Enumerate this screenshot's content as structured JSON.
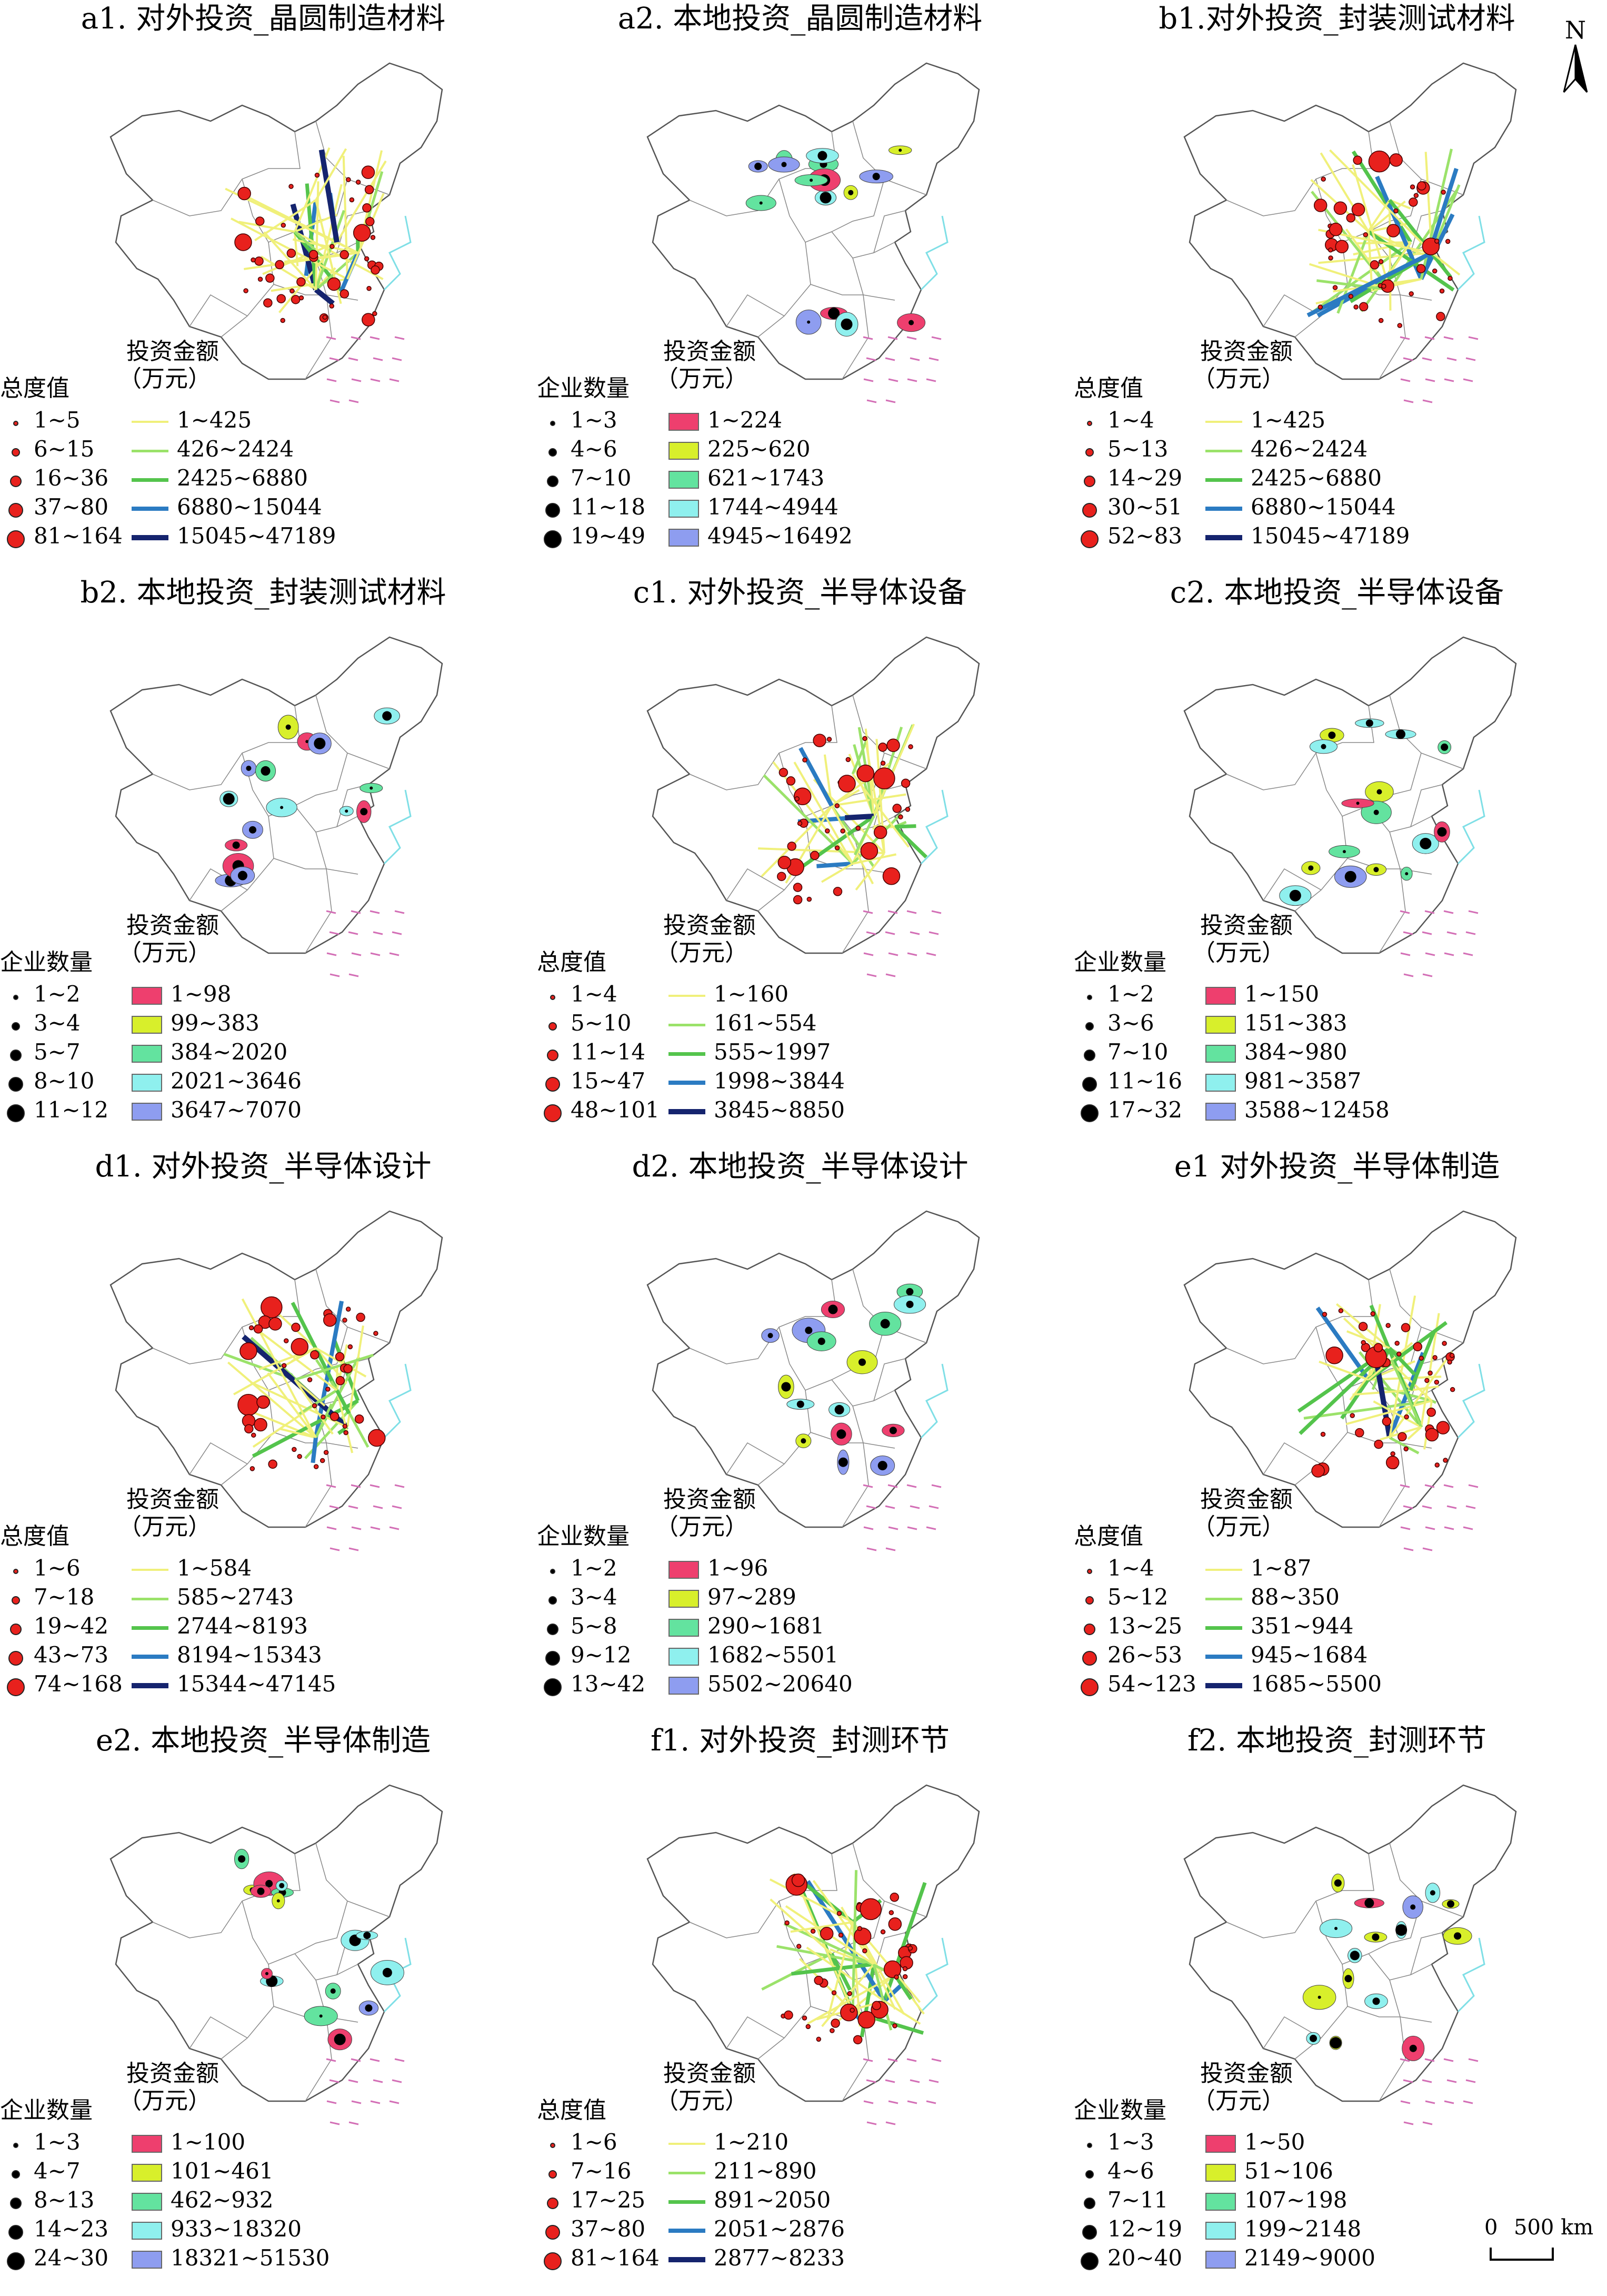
{
  "colors": {
    "outflow_dot": "#e8211d",
    "local_dot": "#000000",
    "flow_lines": [
      "#f0f07a",
      "#9be26a",
      "#54c44c",
      "#2b7bc2",
      "#15246e"
    ],
    "local_fills": [
      "#ee3f6e",
      "#d8ef2b",
      "#63e39f",
      "#8ff0ee",
      "#8e9df0"
    ],
    "map_stroke": "#555555",
    "island_stroke": "#d36fb6",
    "coast_stroke": "#7fdfe6"
  },
  "north_arrow": {
    "label": "N"
  },
  "scale_bar": {
    "zero": "0",
    "label": "500 km"
  },
  "panels": [
    {
      "id": "a1",
      "kind": "outflow",
      "title": "a1. 对外投资_晶圆制造材料",
      "legend_size_title": "总度值",
      "legend_amount_title": "投资金额",
      "legend_amount_unit": "（万元）",
      "size_classes": [
        "1~5",
        "6~15",
        "16~36",
        "37~80",
        "81~164"
      ],
      "amount_classes": [
        "1~425",
        "426~2424",
        "2425~6880",
        "6880~15044",
        "15045~47189"
      ]
    },
    {
      "id": "a2",
      "kind": "local",
      "title": "a2. 本地投资_晶圆制造材料",
      "legend_size_title": "企业数量",
      "legend_amount_title": "投资金额",
      "legend_amount_unit": "（万元）",
      "size_classes": [
        "1~3",
        "4~6",
        "7~10",
        "11~18",
        "19~49"
      ],
      "amount_classes": [
        "1~224",
        "225~620",
        "621~1743",
        "1744~4944",
        "4945~16492"
      ]
    },
    {
      "id": "b1",
      "kind": "outflow",
      "title": "b1.对外投资_封装测试材料",
      "legend_size_title": "总度值",
      "legend_amount_title": "投资金额",
      "legend_amount_unit": "（万元）",
      "size_classes": [
        "1~4",
        "5~13",
        "14~29",
        "30~51",
        "52~83"
      ],
      "amount_classes": [
        "1~425",
        "426~2424",
        "2425~6880",
        "6880~15044",
        "15045~47189"
      ]
    },
    {
      "id": "b2",
      "kind": "local",
      "title": "b2. 本地投资_封装测试材料",
      "legend_size_title": "企业数量",
      "legend_amount_title": "投资金额",
      "legend_amount_unit": "（万元）",
      "size_classes": [
        "1~2",
        "3~4",
        "5~7",
        "8~10",
        "11~12"
      ],
      "amount_classes": [
        "1~98",
        "99~383",
        "384~2020",
        "2021~3646",
        "3647~7070"
      ]
    },
    {
      "id": "c1",
      "kind": "outflow",
      "title": "c1. 对外投资_半导体设备",
      "legend_size_title": "总度值",
      "legend_amount_title": "投资金额",
      "legend_amount_unit": "（万元）",
      "size_classes": [
        "1~4",
        "5~10",
        "11~14",
        "15~47",
        "48~101"
      ],
      "amount_classes": [
        "1~160",
        "161~554",
        "555~1997",
        "1998~3844",
        "3845~8850"
      ]
    },
    {
      "id": "c2",
      "kind": "local",
      "title": "c2. 本地投资_半导体设备",
      "legend_size_title": "企业数量",
      "legend_amount_title": "投资金额",
      "legend_amount_unit": "（万元）",
      "size_classes": [
        "1~2",
        "3~6",
        "7~10",
        "11~16",
        "17~32"
      ],
      "amount_classes": [
        "1~150",
        "151~383",
        "384~980",
        "981~3587",
        "3588~12458"
      ]
    },
    {
      "id": "d1",
      "kind": "outflow",
      "title": "d1. 对外投资_半导体设计",
      "legend_size_title": "总度值",
      "legend_amount_title": "投资金额",
      "legend_amount_unit": "（万元）",
      "size_classes": [
        "1~6",
        "7~18",
        "19~42",
        "43~73",
        "74~168"
      ],
      "amount_classes": [
        "1~584",
        "585~2743",
        "2744~8193",
        "8194~15343",
        "15344~47145"
      ]
    },
    {
      "id": "d2",
      "kind": "local",
      "title": "d2. 本地投资_半导体设计",
      "legend_size_title": "企业数量",
      "legend_amount_title": "投资金额",
      "legend_amount_unit": "（万元）",
      "size_classes": [
        "1~2",
        "3~4",
        "5~8",
        "9~12",
        "13~42"
      ],
      "amount_classes": [
        "1~96",
        "97~289",
        "290~1681",
        "1682~5501",
        "5502~20640"
      ]
    },
    {
      "id": "e1",
      "kind": "outflow",
      "title": "e1 对外投资_半导体制造",
      "legend_size_title": "总度值",
      "legend_amount_title": "投资金额",
      "legend_amount_unit": "（万元）",
      "size_classes": [
        "1~4",
        "5~12",
        "13~25",
        "26~53",
        "54~123"
      ],
      "amount_classes": [
        "1~87",
        "88~350",
        "351~944",
        "945~1684",
        "1685~5500"
      ]
    },
    {
      "id": "e2",
      "kind": "local",
      "title": "e2. 本地投资_半导体制造",
      "legend_size_title": "企业数量",
      "legend_amount_title": "投资金额",
      "legend_amount_unit": "（万元）",
      "size_classes": [
        "1~3",
        "4~7",
        "8~13",
        "14~23",
        "24~30"
      ],
      "amount_classes": [
        "1~100",
        "101~461",
        "462~932",
        "933~18320",
        "18321~51530"
      ]
    },
    {
      "id": "f1",
      "kind": "outflow",
      "title": "f1. 对外投资_封测环节",
      "legend_size_title": "总度值",
      "legend_amount_title": "投资金额",
      "legend_amount_unit": "（万元）",
      "size_classes": [
        "1~6",
        "7~16",
        "17~25",
        "37~80",
        "81~164"
      ],
      "amount_classes": [
        "1~210",
        "211~890",
        "891~2050",
        "2051~2876",
        "2877~8233"
      ]
    },
    {
      "id": "f2",
      "kind": "local",
      "title": "f2. 本地投资_封测环节",
      "legend_size_title": "企业数量",
      "legend_amount_title": "投资金额",
      "legend_amount_unit": "（万元）",
      "size_classes": [
        "1~3",
        "4~6",
        "7~11",
        "12~19",
        "20~40"
      ],
      "amount_classes": [
        "1~50",
        "51~106",
        "107~198",
        "199~2148",
        "2149~9000"
      ]
    }
  ]
}
